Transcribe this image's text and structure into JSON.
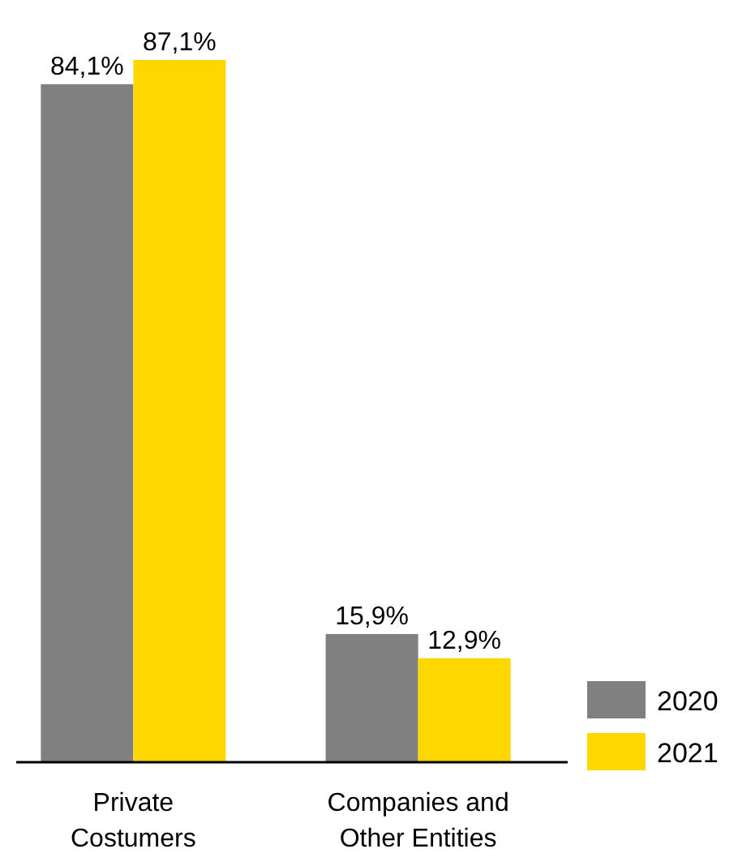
{
  "chart_data": {
    "type": "bar",
    "categories": [
      "Private Costumers",
      "Companies and Other Entities"
    ],
    "series": [
      {
        "name": "2020",
        "color": "#808080",
        "values": [
          84.1,
          15.9
        ],
        "value_labels": [
          "84,1%",
          "15,9%"
        ]
      },
      {
        "name": "2021",
        "color": "#ffd700",
        "values": [
          87.1,
          12.9
        ],
        "value_labels": [
          "87,1%",
          "12,9%"
        ]
      }
    ],
    "legend": "bottom right"
  }
}
